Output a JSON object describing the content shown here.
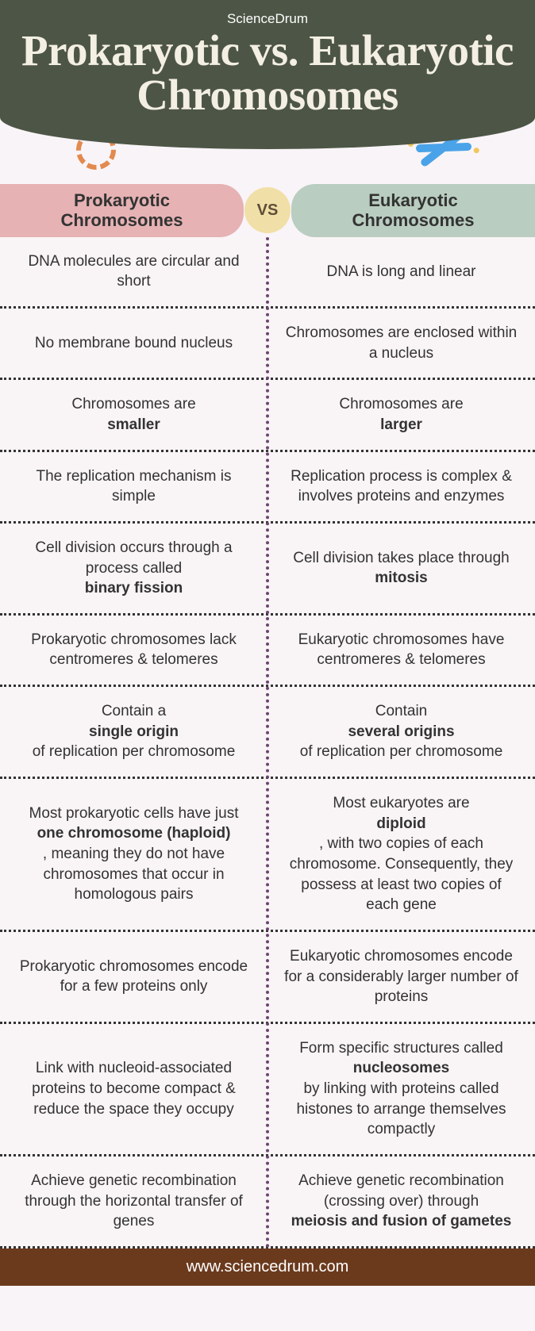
{
  "brand": "ScienceDrum",
  "title": "Prokaryotic vs. Eukaryotic Chromosomes",
  "vs_label": "VS",
  "colors": {
    "header_bg": "#4d5646",
    "title_color": "#f4efe3",
    "left_header_bg": "#e6b2b4",
    "right_header_bg": "#b9cdc0",
    "vs_bg": "#f1dfa8",
    "vs_text": "#5d4e37",
    "divider": "#6b4570",
    "row_border": "#333333",
    "cell_bg": "#f9f4f5",
    "footer_bg": "#6b3a1d",
    "footer_text": "#ffffff",
    "text": "#333333"
  },
  "columns": {
    "left": "Prokaryotic Chromosomes",
    "right": "Eukaryotic Chromosomes"
  },
  "icons": {
    "left": "circular-dna-icon",
    "right": "dna-helix-icon"
  },
  "rows": [
    {
      "left": "DNA molecules are circular and short",
      "right": "DNA is long and linear"
    },
    {
      "left": "No membrane bound nucleus",
      "right": "Chromosomes are enclosed within a nucleus"
    },
    {
      "left": "Chromosomes are <b>smaller</b>",
      "right": "Chromosomes are <b>larger</b>"
    },
    {
      "left": "The replication mechanism is simple",
      "right": "Replication process is complex & involves proteins and enzymes"
    },
    {
      "left": "Cell division occurs through a process called <b>binary fission</b>",
      "right": "Cell division takes place through <b>mitosis</b>"
    },
    {
      "left": "Prokaryotic chromosomes lack centromeres & telomeres",
      "right": "Eukaryotic chromosomes have centromeres & telomeres"
    },
    {
      "left": "Contain a <b>single origin</b> of replication per chromosome",
      "right": "Contain <b>several origins</b> of replication per chromosome"
    },
    {
      "left": "Most prokaryotic cells have just <b>one chromosome (haploid)</b>, meaning they do not have chromosomes that occur in homologous pairs",
      "right": "Most eukaryotes are <b>diploid</b>, with two copies of each chromosome. Consequently, they possess at least two copies of each gene"
    },
    {
      "left": "Prokaryotic chromosomes encode for a few proteins only",
      "right": "Eukaryotic chromosomes encode for a considerably larger number of proteins"
    },
    {
      "left": "Link with nucleoid-associated proteins to become compact & reduce the space they occupy",
      "right": "Form specific structures called <b>nucleosomes</b> by linking with proteins called histones to arrange themselves compactly"
    },
    {
      "left": "Achieve genetic recombination through the horizontal transfer of genes",
      "right": "Achieve genetic recombination (crossing over) through <b>meiosis and fusion of gametes</b>"
    }
  ],
  "footer": "www.sciencedrum.com"
}
